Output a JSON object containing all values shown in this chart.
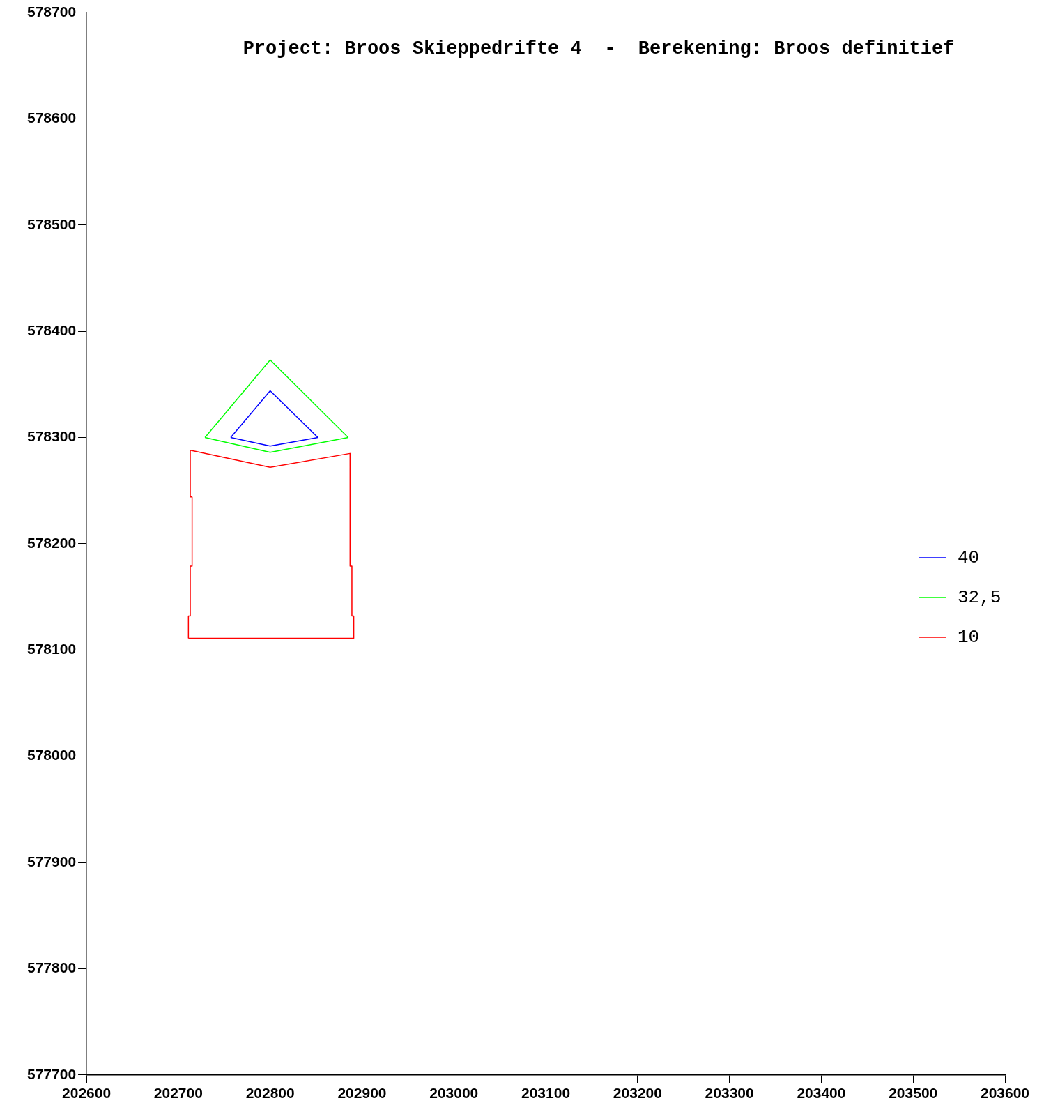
{
  "chart_data": {
    "type": "line",
    "title": "Project: Broos Skieppedrifte 4  -  Berekening: Broos definitief",
    "xlim": [
      202600,
      203600
    ],
    "xticks": [
      202600,
      202700,
      202800,
      202900,
      203000,
      203100,
      203200,
      203300,
      203400,
      203500,
      203600
    ],
    "ylim": [
      577700,
      578700
    ],
    "yticks": [
      577700,
      577800,
      577900,
      578000,
      578100,
      578200,
      578300,
      578400,
      578500,
      578600,
      578700
    ],
    "grid": false,
    "legend": "right",
    "marker": "none",
    "line_style": "solid",
    "series": [
      {
        "name": "40",
        "color": "#0000ff",
        "x": [
          202757,
          202800,
          202852
        ],
        "values": [
          578300,
          578344,
          578300
        ]
      },
      {
        "color": "#0000ff",
        "x": [
          202757,
          202800,
          202852
        ],
        "values": [
          578300,
          578292,
          578300
        ]
      },
      {
        "name": "32,5",
        "color": "#00ff00",
        "x": [
          202729,
          202800,
          202885
        ],
        "values": [
          578300,
          578373,
          578300
        ]
      },
      {
        "color": "#00ff00",
        "x": [
          202729,
          202800,
          202885
        ],
        "values": [
          578300,
          578286,
          578300
        ]
      },
      {
        "name": "10",
        "color": "#ff0000",
        "x": [
          202713,
          202800,
          202887,
          202887,
          202889,
          202889,
          202891,
          202891
        ],
        "values": [
          578288,
          578272,
          578285,
          578179,
          578179,
          578132,
          578132,
          578111
        ]
      },
      {
        "color": "#ff0000",
        "x": [
          202711,
          202891
        ],
        "values": [
          578111,
          578111
        ]
      },
      {
        "color": "#ff0000",
        "x": [
          202711,
          202711,
          202713,
          202713,
          202715,
          202715
        ],
        "values": [
          578111,
          578132,
          578132,
          578179,
          578179,
          578244
        ]
      },
      {
        "color": "#ff0000",
        "x": [
          202713,
          202713,
          202715
        ],
        "values": [
          578288,
          578244,
          578244
        ]
      }
    ]
  }
}
